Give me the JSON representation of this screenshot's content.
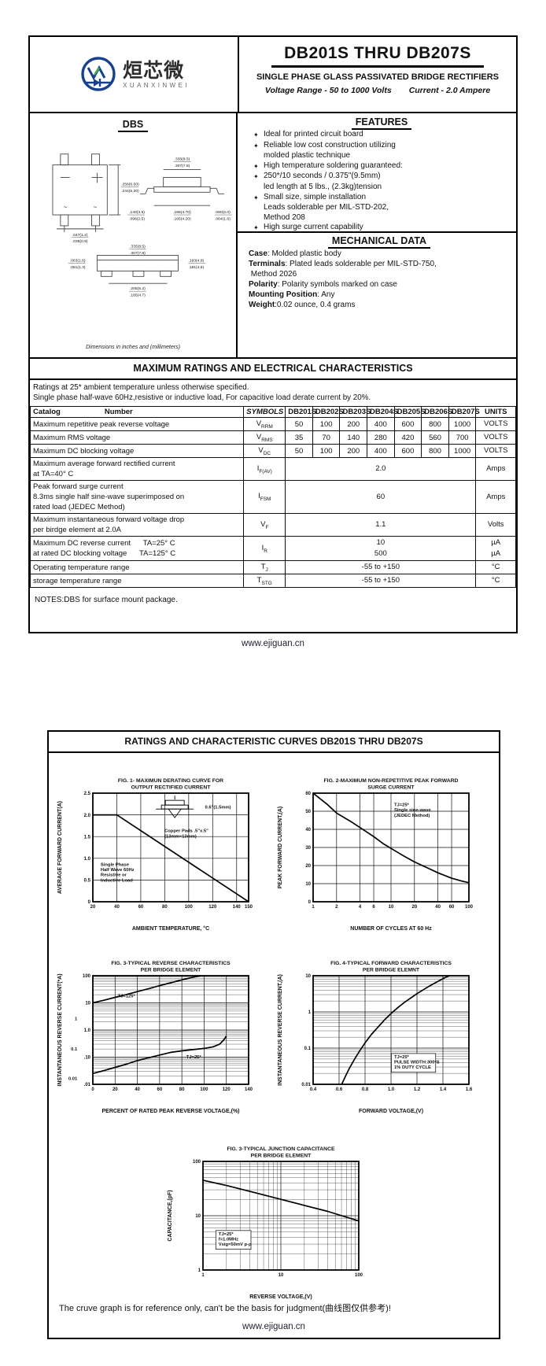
{
  "page1": {
    "logo": {
      "brand_cn": "烜芯微",
      "brand_en": "XUANXINWEI"
    },
    "title": "DB201S THRU DB207S",
    "subtitle": "SINGLE PHASE GLASS PASSIVATED BRIDGE RECTIFIERS",
    "range": {
      "voltage": "Voltage Range - 50 to 1000 Volts",
      "current": "Current - 2.0 Ampere"
    },
    "package": {
      "name": "DBS",
      "caption": "Dimensions in inches and (millimeters)",
      "front_marks": {
        "minus": "−",
        "plus": "+",
        "ac": "~"
      },
      "dims": [
        {
          "top": ".256(6.50)",
          "bot": ".244(6.20)"
        },
        {
          "top": ".047(1.2)",
          "bot": ".035(0.9)"
        },
        {
          "top": ".335(8.5)",
          "bot": ".307(7.8)"
        },
        {
          "top": ".185(4.70)",
          "bot": ".165(4.20)"
        },
        {
          "top": ".140(3.5)",
          "bot": ".098(2.5)"
        },
        {
          "top": ".080(2.0)",
          "bot": ".064(1.6)"
        },
        {
          "top": ".335(8.5)",
          "bot": ".307(7.8)"
        },
        {
          "top": ".063(1.6)",
          "bot": ".051(1.3)"
        },
        {
          "top": ".193(4.9)",
          "bot": ".181(4.6)"
        },
        {
          "top": ".205(5.2)",
          "bot": ".185(4.7)"
        }
      ]
    },
    "features": {
      "heading": "FEATURES",
      "bullet": "✦",
      "items": [
        [
          "Ideal for printed circuit board"
        ],
        [
          "Reliable low cost construction utilizing",
          "molded plastic technique"
        ],
        [
          "High temperature soldering guaranteed:"
        ],
        [
          "250*/10 seconds / 0.375\"(9.5mm)",
          "led length at 5 lbs., (2.3kg)tension"
        ],
        [
          "Small size, simple installation",
          "Leads solderable per MIL-STD-202,",
          "Method 208"
        ],
        [
          "High surge current capability"
        ]
      ]
    },
    "mechanical": {
      "heading": "MECHANICAL DATA",
      "lines": [
        {
          "b": "Case",
          "t": ": Molded plastic body"
        },
        {
          "b": "Terminals",
          "t": ": Plated leads solderable per MIL-STD-750,"
        },
        {
          "b": "",
          "t": " Method 2026"
        },
        {
          "b": "Polarity",
          "t": ": Polarity symbols marked on case"
        },
        {
          "b": "Mounting Position",
          "t": ": Any"
        },
        {
          "b": "Weight",
          "t": ":0.02 ounce, 0.4 grams"
        }
      ]
    },
    "ratings": {
      "heading": "MAXIMUM RATINGS AND ELECTRICAL CHARACTERISTICS",
      "note1": "Ratings at 25* ambient temperature unless otherwise specified.",
      "note2": "Single phase half-wave 60Hz,resistive or inductive load, For capacitive load derate current by 20%.",
      "col_headers": {
        "catalog": "Catalog",
        "number": "Number",
        "symbols": "SYMBOLS",
        "devices": [
          "DB201S",
          "DB202S",
          "DB203S",
          "DB204S",
          "DB205S",
          "DB206S",
          "DB207S"
        ],
        "units": "UNITS"
      },
      "rows": [
        {
          "label": [
            "Maximum repetitive peak reverse voltage"
          ],
          "sym": {
            "b": "V",
            "s": "RRM"
          },
          "vals": [
            "50",
            "100",
            "200",
            "400",
            "600",
            "800",
            "1000"
          ],
          "units": [
            "VOLTS"
          ]
        },
        {
          "label": [
            "Maximum RMS voltage"
          ],
          "sym": {
            "b": "V",
            "s": "RMS"
          },
          "vals": [
            "35",
            "70",
            "140",
            "280",
            "420",
            "560",
            "700"
          ],
          "units": [
            "VOLTS"
          ]
        },
        {
          "label": [
            "Maximum DC blocking voltage"
          ],
          "sym": {
            "b": "V",
            "s": "DC"
          },
          "vals": [
            "50",
            "100",
            "200",
            "400",
            "600",
            "800",
            "1000"
          ],
          "units": [
            "VOLTS"
          ]
        },
        {
          "label": [
            "Maximum average forward rectified current",
            "at TA=40° C"
          ],
          "sym": {
            "b": "I",
            "s": "F(AV)"
          },
          "span": [
            "2.0"
          ],
          "units": [
            "Amps"
          ]
        },
        {
          "label": [
            "Peak forward surge current",
            "8.3ms single half sine-wave superimposed on",
            "rated load (JEDEC Method)"
          ],
          "sym": {
            "b": "I",
            "s": "FSM"
          },
          "span": [
            "60"
          ],
          "units": [
            "Amps"
          ]
        },
        {
          "label": [
            "Maximum instantaneous forward voltage drop",
            "per birdge element at 2.0A"
          ],
          "sym": {
            "b": "V",
            "s": "F"
          },
          "span": [
            "1.1"
          ],
          "units": [
            "Volts"
          ]
        },
        {
          "label": [
            "Maximum DC reverse current      TA=25° C",
            "at rated DC blocking voltage      TA=125° C"
          ],
          "sym": {
            "b": "I",
            "s": "R"
          },
          "span": [
            "10",
            "500"
          ],
          "units": [
            "µA",
            "µA"
          ]
        },
        {
          "label": [
            "Operating temperature range"
          ],
          "sym": {
            "b": "T",
            "s": "J"
          },
          "span": [
            "-55 to +150"
          ],
          "units": [
            "°C"
          ]
        },
        {
          "label": [
            "storage temperature range"
          ],
          "sym": {
            "b": "T",
            "s": "STG"
          },
          "span": [
            "-55 to +150"
          ],
          "units": [
            "°C"
          ]
        }
      ]
    },
    "notes": "NOTES:DBS for surface mount package.",
    "footer": "www.ejiguan.cn"
  },
  "page2": {
    "heading": "RATINGS AND CHARACTERISTIC CURVES DB201S THRU DB207S",
    "disclaimer": "The cruve graph is for reference only, can't be the basis for judgment(曲线图仅供参考)!",
    "footer": "www.ejiguan.cn"
  },
  "chart_data": [
    {
      "id": "fig1",
      "type": "line",
      "title": [
        "FIG. 1- MAXIMUN DERATING CURVE FOR",
        "OUTPUT RECTIFIED CURRENT"
      ],
      "xlabel": "AMBIENT TEMPERATURE, °C",
      "ylabel": "AVERAGE FORWARD CURRENT(A)",
      "x": {
        "scale": "linear",
        "min": 20,
        "max": 150,
        "ticks": [
          [
            20,
            "20"
          ],
          [
            40,
            "40"
          ],
          [
            60,
            "60"
          ],
          [
            80,
            "80"
          ],
          [
            100,
            "100"
          ],
          [
            120,
            "120"
          ],
          [
            140,
            "140"
          ],
          [
            150,
            "150"
          ]
        ]
      },
      "y": {
        "scale": "linear",
        "min": 0,
        "max": 2.5,
        "ticks": [
          [
            0,
            "0"
          ],
          [
            0.5,
            "0.5"
          ],
          [
            1,
            "1.0"
          ],
          [
            1.5,
            "1.5"
          ],
          [
            2,
            "2.0"
          ],
          [
            2.5,
            "2.5"
          ]
        ]
      },
      "series": [
        {
          "name": "output current derating",
          "pts": [
            [
              20,
              2
            ],
            [
              40,
              2
            ],
            [
              150,
              0
            ]
          ]
        }
      ],
      "pkg_icon": {
        "fx": 0.42,
        "fy": 0.03
      },
      "annotations": [
        {
          "fx": 0.72,
          "fy": 0.14,
          "lines": [
            "0.6\"(1.5mm)"
          ]
        },
        {
          "fx": 0.46,
          "fy": 0.36,
          "lines": [
            "Copper Pads .5\"x.5\"",
            "(13mm×13mm)"
          ]
        },
        {
          "fx": 0.05,
          "fy": 0.67,
          "lines": [
            "Single Phase",
            "Half Wave 60Hz",
            "Resistive or",
            "Inductive Load"
          ]
        }
      ]
    },
    {
      "id": "fig2",
      "type": "line",
      "title": [
        "FIG. 2-MAXIMUM NON-REPETITIVE PEAK FORWARD",
        "SURGE CURRENT"
      ],
      "xlabel": "NUMBER OF CYCLES AT 60 Hz",
      "ylabel": "PEAK  FORWARD CURRENT,(A)",
      "x": {
        "scale": "log",
        "min": 1,
        "max": 100,
        "ticks": [
          [
            1,
            "1"
          ],
          [
            2,
            "2"
          ],
          [
            4,
            "4"
          ],
          [
            6,
            "6"
          ],
          [
            10,
            "10"
          ],
          [
            20,
            "20"
          ],
          [
            40,
            "40"
          ],
          [
            60,
            "60"
          ],
          [
            100,
            "100"
          ]
        ]
      },
      "y": {
        "scale": "linear",
        "min": 0,
        "max": 60,
        "ticks": [
          [
            0,
            "0"
          ],
          [
            10,
            "10"
          ],
          [
            20,
            "20"
          ],
          [
            30,
            "30"
          ],
          [
            40,
            "40"
          ],
          [
            50,
            "50"
          ],
          [
            60,
            "60"
          ]
        ]
      },
      "series": [
        {
          "name": "surge current",
          "pts": [
            [
              1,
              60
            ],
            [
              1.5,
              54
            ],
            [
              2,
              49
            ],
            [
              3,
              44.5
            ],
            [
              4,
              41
            ],
            [
              6,
              36
            ],
            [
              8,
              32
            ],
            [
              10,
              29.5
            ],
            [
              15,
              25
            ],
            [
              20,
              22
            ],
            [
              30,
              18.5
            ],
            [
              40,
              16
            ],
            [
              60,
              13
            ],
            [
              80,
              11.5
            ],
            [
              100,
              10.5
            ]
          ]
        }
      ],
      "annotations": [
        {
          "fx": 0.52,
          "fy": 0.12,
          "lines": [
            "TJ=25*",
            "Single sine-wave",
            "(JEDEC Method)"
          ]
        }
      ]
    },
    {
      "id": "fig3",
      "type": "line",
      "title": [
        "FIG. 3-TYPICAL REVERSE CHARACTERISTICS",
        "PER BRIDGE ELEMENT"
      ],
      "xlabel": "PERCENT OF RATED PEAK REVERSE VOLTAGE,(%)",
      "ylabel": "INSTANTANEOUS REVERSE CURRENT(*A)",
      "x": {
        "scale": "linear",
        "min": 0,
        "max": 140,
        "ticks": [
          [
            0,
            "0"
          ],
          [
            20,
            "20"
          ],
          [
            40,
            "40"
          ],
          [
            60,
            "60"
          ],
          [
            80,
            "80"
          ],
          [
            100,
            "100"
          ],
          [
            120,
            "120"
          ],
          [
            140,
            "140"
          ]
        ]
      },
      "y": {
        "scale": "log",
        "min": 0.01,
        "max": 100,
        "minor": true,
        "ticks": [
          [
            100,
            "100"
          ],
          [
            10,
            "10"
          ],
          [
            1,
            "1.0"
          ],
          [
            0.1,
            ".10"
          ],
          [
            0.01,
            ".01"
          ]
        ]
      },
      "series": [
        {
          "name": "TJ=125*",
          "pts": [
            [
              0,
              10
            ],
            [
              10,
              12.5
            ],
            [
              20,
              16
            ],
            [
              30,
              20
            ],
            [
              40,
              26
            ],
            [
              50,
              33
            ],
            [
              60,
              43
            ],
            [
              70,
              55
            ],
            [
              80,
              70
            ],
            [
              90,
              88
            ],
            [
              97,
              100
            ]
          ]
        },
        {
          "name": "TJ=25*",
          "pts": [
            [
              0,
              0.025
            ],
            [
              10,
              0.032
            ],
            [
              20,
              0.042
            ],
            [
              30,
              0.055
            ],
            [
              40,
              0.075
            ],
            [
              50,
              0.095
            ],
            [
              60,
              0.12
            ],
            [
              70,
              0.15
            ],
            [
              80,
              0.17
            ],
            [
              90,
              0.19
            ],
            [
              100,
              0.21
            ],
            [
              108,
              0.24
            ],
            [
              114,
              0.3
            ],
            [
              118,
              0.45
            ],
            [
              120,
              0.6
            ]
          ]
        }
      ],
      "annotations": [
        {
          "fx": 0.16,
          "fy": 0.2,
          "lines": [
            "TJ=125*"
          ]
        },
        {
          "fx": 0.6,
          "fy": 0.76,
          "lines": [
            "TJ=25*"
          ]
        },
        {
          "fx": -0.1,
          "fy": 0.41,
          "anchor": "end",
          "lines": [
            "1"
          ]
        },
        {
          "fx": -0.1,
          "fy": 0.69,
          "anchor": "end",
          "lines": [
            "0.1"
          ]
        },
        {
          "fx": -0.1,
          "fy": 0.96,
          "anchor": "end",
          "lines": [
            "0.01"
          ]
        }
      ]
    },
    {
      "id": "fig4",
      "type": "line",
      "title": [
        "FIG. 4-TYPICAL FORWARD CHARACTERISTICS",
        "PER BRIDGE ELEMNT"
      ],
      "xlabel": "FORWARD VOLTAGE,(V)",
      "ylabel": "INSTANTANEOUS REVERSE CURRENT,(A)",
      "x": {
        "scale": "linear",
        "min": 0.4,
        "max": 1.6,
        "ticks": [
          [
            0.4,
            "0.4"
          ],
          [
            0.6,
            "0.6"
          ],
          [
            0.8,
            "0.8"
          ],
          [
            1,
            "1.0"
          ],
          [
            1.2,
            "1.2"
          ],
          [
            1.4,
            "1.4"
          ],
          [
            1.6,
            "1.6"
          ]
        ]
      },
      "y": {
        "scale": "log",
        "min": 0.01,
        "max": 10,
        "minor": true,
        "ticks": [
          [
            10,
            "10"
          ],
          [
            1,
            "1"
          ],
          [
            0.1,
            "0.1"
          ],
          [
            0.01,
            "0.01"
          ]
        ]
      },
      "series": [
        {
          "name": "forward characteristic",
          "pts": [
            [
              0.62,
              0.01
            ],
            [
              0.65,
              0.017
            ],
            [
              0.68,
              0.028
            ],
            [
              0.72,
              0.05
            ],
            [
              0.76,
              0.085
            ],
            [
              0.8,
              0.14
            ],
            [
              0.85,
              0.24
            ],
            [
              0.9,
              0.38
            ],
            [
              0.95,
              0.6
            ],
            [
              1,
              0.9
            ],
            [
              1.05,
              1.3
            ],
            [
              1.1,
              1.8
            ],
            [
              1.2,
              3.2
            ],
            [
              1.3,
              5.3
            ],
            [
              1.4,
              8.3
            ],
            [
              1.45,
              10
            ]
          ]
        }
      ],
      "annotations": [
        {
          "fx": 0.52,
          "fy": 0.76,
          "box": true,
          "lines": [
            "TJ=25*",
            "PULSE WIDTH:300*S",
            "1% DUTY CYCLE"
          ]
        }
      ]
    },
    {
      "id": "fig5",
      "type": "line",
      "title": [
        "FIG. 3-TYPICAL JUNCTION CAPACITANCE",
        "PER BRIDGE ELEMENT"
      ],
      "xlabel": "REVERSE VOLTAGE,(V)",
      "ylabel": "CAPACITANCE,(pF)",
      "x": {
        "scale": "log",
        "min": 1,
        "max": 100,
        "minor": true,
        "ticks": [
          [
            1,
            "1"
          ],
          [
            10,
            "10"
          ],
          [
            100,
            "100"
          ]
        ]
      },
      "y": {
        "scale": "log",
        "min": 1,
        "max": 100,
        "minor": true,
        "ticks": [
          [
            1,
            "1"
          ],
          [
            10,
            "10"
          ],
          [
            100,
            "100"
          ]
        ]
      },
      "series": [
        {
          "name": "junction capacitance",
          "pts": [
            [
              1,
              45
            ],
            [
              2,
              36
            ],
            [
              4,
              28
            ],
            [
              10,
              20
            ],
            [
              20,
              15.5
            ],
            [
              40,
              12
            ],
            [
              100,
              8
            ]
          ]
        }
      ],
      "annotations": [
        {
          "fx": 0.1,
          "fy": 0.68,
          "box": true,
          "lines": [
            "TJ=25*",
            "f=1.0MHz",
            "Vsig=50mV p-p"
          ]
        }
      ]
    }
  ]
}
